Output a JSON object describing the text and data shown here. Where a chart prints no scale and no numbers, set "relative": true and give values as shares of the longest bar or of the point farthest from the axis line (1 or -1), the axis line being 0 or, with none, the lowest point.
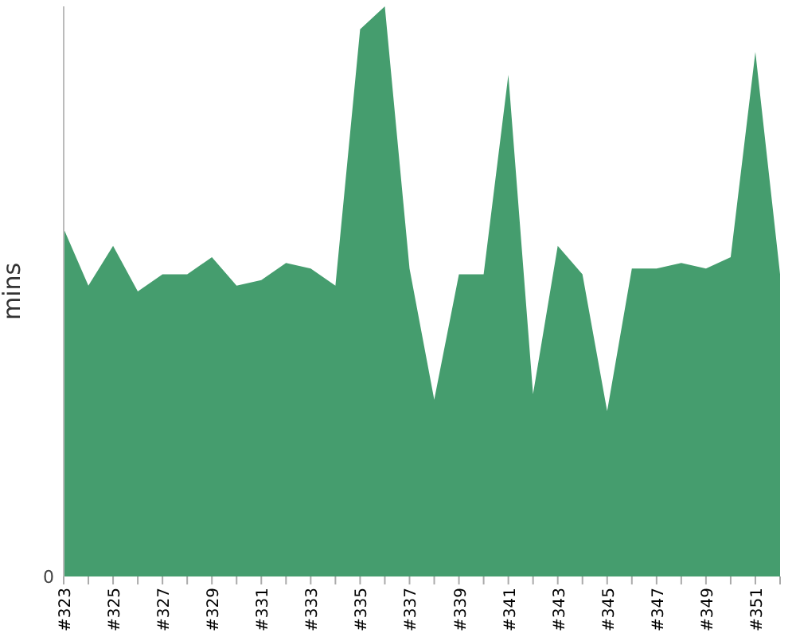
{
  "chart_data": {
    "type": "area",
    "ylabel": "mins",
    "relative": true,
    "annotations": [
      "0"
    ],
    "color": "#459d6e",
    "categories": [
      "#323",
      null,
      "#325",
      null,
      "#327",
      null,
      "#329",
      null,
      "#331",
      null,
      "#333",
      null,
      "#335",
      null,
      "#337",
      null,
      "#339",
      null,
      "#341",
      null,
      "#343",
      null,
      "#345",
      null,
      "#347",
      null,
      "#349",
      null,
      "#351",
      null
    ],
    "values": [
      0.61,
      0.51,
      0.58,
      0.5,
      0.53,
      0.53,
      0.56,
      0.51,
      0.52,
      0.55,
      0.54,
      0.51,
      0.96,
      1,
      0.54,
      0.31,
      0.53,
      0.53,
      0.88,
      0.32,
      0.58,
      0.53,
      0.29,
      0.54,
      0.54,
      0.55,
      0.54,
      0.56,
      0.92,
      0.53
    ]
  }
}
